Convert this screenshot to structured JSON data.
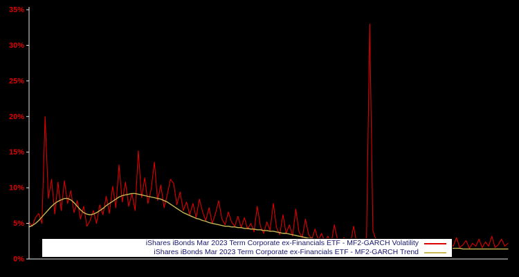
{
  "chart_data": {
    "type": "line",
    "title": "",
    "xlabel": "",
    "ylabel": "",
    "ylim": [
      0,
      35
    ],
    "grid": false,
    "background": "#000000",
    "axis_color": "#e8e8e8",
    "tick_label_color": "#dd0000",
    "y_ticks": [
      "0%",
      "5%",
      "10%",
      "15%",
      "20%",
      "25%",
      "30%",
      "35%"
    ],
    "y_tick_values": [
      0,
      5,
      10,
      15,
      20,
      25,
      30,
      35
    ],
    "x_tick_labels": [],
    "legend": {
      "position": "bottom-center",
      "background": "#ffffff",
      "border_color": "#000000",
      "text_color": "#16166b",
      "entries": [
        {
          "label": "iShares iBonds Mar 2023 Term Corporate ex-Financials ETF - MF2-GARCH Volatility",
          "color": "#dd0000"
        },
        {
          "label": "iShares iBonds Mar 2023 Term Corporate ex-Financials ETF - MF2-GARCH Trend",
          "color": "#c9b955"
        }
      ]
    },
    "series": [
      {
        "name": "volatility",
        "color": "#dd0000",
        "width": 1.1,
        "values": [
          5.2,
          4.6,
          5.8,
          6.4,
          5.0,
          20.0,
          8.5,
          11.2,
          6.3,
          10.8,
          6.8,
          11.0,
          7.8,
          9.6,
          6.5,
          8.2,
          5.6,
          7.4,
          4.6,
          5.4,
          6.8,
          5.0,
          7.6,
          6.2,
          8.8,
          6.4,
          10.2,
          7.2,
          13.2,
          8.0,
          10.8,
          7.4,
          9.2,
          6.8,
          15.2,
          8.6,
          11.4,
          7.8,
          9.8,
          13.6,
          8.2,
          10.4,
          7.2,
          9.0,
          11.2,
          10.6,
          7.6,
          9.4,
          6.8,
          8.0,
          6.2,
          7.8,
          5.8,
          8.4,
          6.6,
          5.4,
          7.2,
          5.0,
          6.4,
          8.2,
          5.6,
          4.8,
          6.6,
          5.2,
          4.6,
          6.0,
          4.4,
          5.8,
          4.2,
          5.0,
          3.8,
          7.4,
          4.6,
          3.6,
          5.2,
          4.0,
          7.8,
          4.4,
          3.4,
          6.2,
          3.6,
          4.8,
          3.2,
          7.0,
          3.8,
          3.0,
          5.6,
          3.4,
          2.8,
          4.2,
          2.6,
          3.6,
          2.4,
          3.2,
          2.2,
          4.8,
          2.6,
          2.0,
          3.0,
          2.4,
          2.2,
          4.6,
          2.0,
          2.6,
          2.2,
          3.0,
          33.0,
          4.0,
          2.6,
          2.2,
          2.8,
          2.0,
          2.4,
          2.0,
          2.6,
          1.8,
          2.2,
          2.6,
          1.8,
          2.4,
          1.8,
          2.0,
          2.8,
          1.6,
          2.2,
          1.8,
          2.6,
          1.6,
          2.0,
          2.4,
          1.6,
          2.2,
          1.8,
          3.0,
          1.6,
          2.0,
          2.6,
          1.5,
          2.2,
          1.8,
          2.8,
          1.6,
          2.4,
          1.8,
          3.2,
          1.6,
          2.0,
          2.8,
          1.8,
          2.2
        ]
      },
      {
        "name": "trend",
        "color": "#c9b955",
        "width": 1.4,
        "values": [
          4.5,
          4.7,
          5.0,
          5.4,
          5.9,
          6.4,
          6.9,
          7.4,
          7.8,
          8.1,
          8.3,
          8.5,
          8.5,
          8.3,
          7.9,
          7.4,
          6.9,
          6.5,
          6.3,
          6.2,
          6.3,
          6.5,
          6.8,
          7.1,
          7.5,
          7.8,
          8.1,
          8.4,
          8.7,
          8.9,
          9.0,
          9.1,
          9.2,
          9.2,
          9.1,
          9.0,
          8.9,
          8.8,
          8.7,
          8.6,
          8.5,
          8.4,
          8.2,
          8.0,
          7.7,
          7.4,
          7.1,
          6.8,
          6.5,
          6.3,
          6.1,
          5.9,
          5.7,
          5.6,
          5.4,
          5.3,
          5.1,
          5.0,
          4.9,
          4.8,
          4.7,
          4.6,
          4.6,
          4.5,
          4.5,
          4.4,
          4.4,
          4.3,
          4.3,
          4.2,
          4.2,
          4.1,
          4.1,
          4.0,
          4.0,
          3.9,
          3.9,
          3.8,
          3.7,
          3.6,
          3.6,
          3.5,
          3.4,
          3.3,
          3.2,
          3.1,
          3.0,
          2.9,
          2.9,
          2.8,
          2.7,
          2.7,
          2.6,
          2.5,
          2.5,
          2.4,
          2.4,
          2.3,
          2.3,
          2.2,
          2.2,
          2.1,
          2.1,
          2.1,
          2.0,
          2.0,
          2.2,
          2.3,
          2.2,
          2.1,
          2.1,
          2.0,
          2.0,
          1.9,
          1.9,
          1.9,
          1.8,
          1.8,
          1.8,
          1.8,
          1.7,
          1.7,
          1.7,
          1.7,
          1.6,
          1.6,
          1.6,
          1.6,
          1.6,
          1.5,
          1.5,
          1.5,
          1.5,
          1.5,
          1.5,
          1.4,
          1.4,
          1.4,
          1.4,
          1.4,
          1.4,
          1.4,
          1.4,
          1.4,
          1.4,
          1.4,
          1.4,
          1.4,
          1.4,
          1.4
        ]
      }
    ]
  }
}
